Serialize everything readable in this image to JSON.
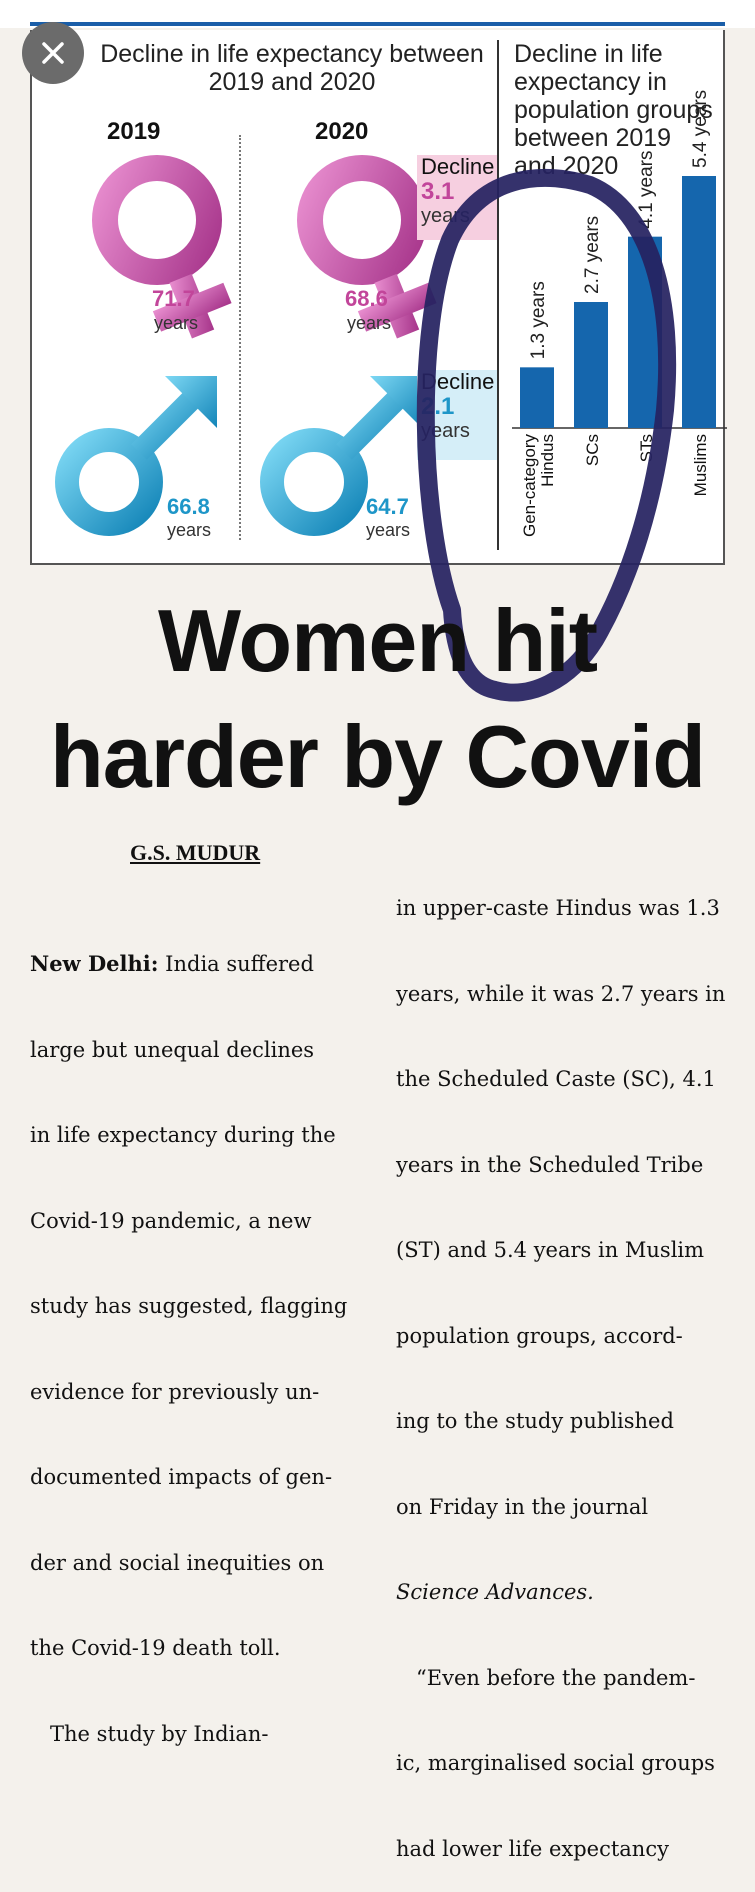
{
  "viewer": {
    "close_label": "close"
  },
  "graphic": {
    "left_title_line1": "Decline in life expectancy between",
    "left_title_line2": "2019 and 2020",
    "year_2019": "2019",
    "year_2020": "2020",
    "female_2019": {
      "value": "71.7",
      "unit": "years"
    },
    "female_2020": {
      "value": "68.6",
      "unit": "years"
    },
    "male_2019": {
      "value": "66.8",
      "unit": "years"
    },
    "male_2020": {
      "value": "64.7",
      "unit": "years"
    },
    "female_decline": {
      "label": "Decline",
      "value": "3.1",
      "unit": "years"
    },
    "male_decline": {
      "label": "Decline",
      "value": "2.1",
      "unit": "years"
    },
    "right_title_lines": [
      "Decline in life",
      "expectancy in",
      "population groups",
      "between 2019",
      "and 2020"
    ],
    "colors": {
      "pink": "#c2459a",
      "blue": "#1e96c8",
      "bar": "#1566ad",
      "annotation": "#262261"
    }
  },
  "chart_data": {
    "type": "bar",
    "categories": [
      "Gen-category Hindus",
      "SCs",
      "STs",
      "Muslims"
    ],
    "values": [
      1.3,
      2.7,
      4.1,
      5.4
    ],
    "value_labels": [
      "1.3 years",
      "2.7 years",
      "4.1 years",
      "5.4 years"
    ],
    "title": "Decline in life expectancy in population groups between 2019 and 2020",
    "ylim": [
      0,
      6
    ],
    "grid": false
  },
  "article": {
    "headline_line1": "Women hit",
    "headline_line2": "harder by Covid",
    "byline": "G.S. MUDUR",
    "col1_lines": [
      "New Delhi: India suffered",
      "large but unequal declines",
      "in life expectancy during the",
      "Covid-19 pandemic, a new",
      "study has suggested, flagging",
      "evidence for previously un-",
      "documented impacts of gen-",
      "der and social inequities on",
      "the Covid-19 death toll.",
      "   The study by Indian-"
    ],
    "col2_lines": [
      "in upper-caste Hindus was 1.3",
      "years, while it was 2.7 years in",
      "the Scheduled Caste (SC), 4.1",
      "years in the Scheduled Tribe",
      "(ST) and 5.4 years in Muslim",
      "population groups, accord-",
      "ing to the study published",
      "on Friday in the journal",
      "Science Advances.",
      "   “Even before the pandem-",
      "ic, marginalised social groups",
      "had lower life expectancy"
    ]
  }
}
